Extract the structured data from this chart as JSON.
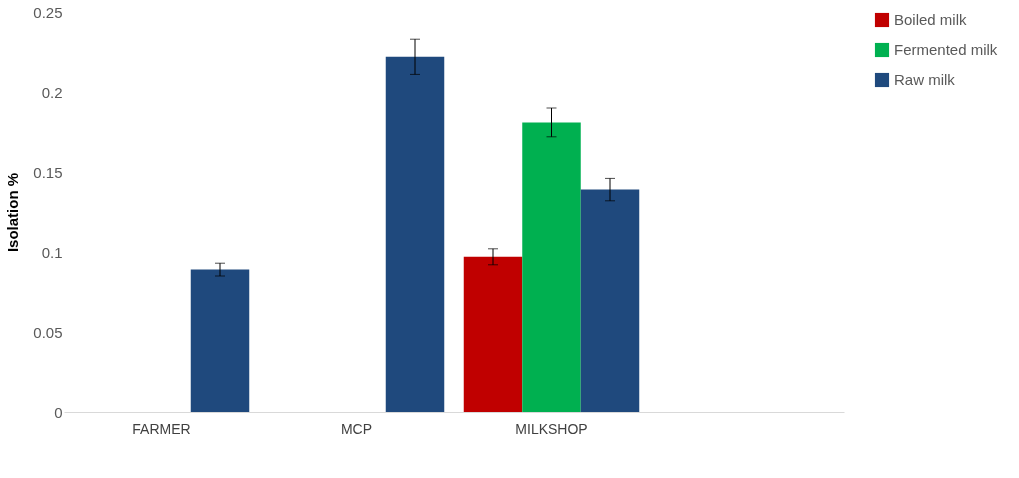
{
  "chart_data": {
    "type": "bar",
    "ylabel": "Isolation %",
    "categories": [
      "FARMER",
      "MCP",
      "MILKSHOP",
      null
    ],
    "series": [
      {
        "name": "Boiled milk",
        "color": "#c00000",
        "values": [
          null,
          null,
          0.097,
          null
        ],
        "errors": [
          null,
          null,
          0.005,
          null
        ]
      },
      {
        "name": "Fermented milk",
        "color": "#00b050",
        "values": [
          null,
          null,
          0.181,
          null
        ],
        "errors": [
          null,
          null,
          0.009,
          null
        ]
      },
      {
        "name": "Raw milk",
        "color": "#1f497d",
        "values": [
          0.089,
          0.222,
          0.139,
          null
        ],
        "errors": [
          0.004,
          0.011,
          0.007,
          null
        ]
      }
    ],
    "ylim": [
      0,
      0.25
    ],
    "yticks": [
      0,
      0.05,
      0.1,
      0.15,
      0.2,
      0.25
    ],
    "grid": false,
    "legend": "right"
  }
}
